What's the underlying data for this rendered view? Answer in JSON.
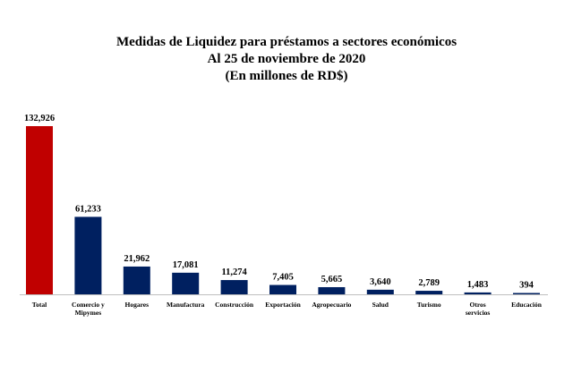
{
  "chart_data": {
    "type": "bar",
    "title": "Medidas de Liquidez para préstamos a sectores económicos",
    "subtitle": "Al 25 de noviembre de 2020",
    "unit_line": "(En millones de RD$)",
    "categories": [
      [
        "Total"
      ],
      [
        "Comercio y",
        "Mipymes"
      ],
      [
        "Hogares"
      ],
      [
        "Manufactura"
      ],
      [
        "Construcción"
      ],
      [
        "Exportación"
      ],
      [
        "Agropecuario"
      ],
      [
        "Salud"
      ],
      [
        "Turismo"
      ],
      [
        "Otros",
        "servicios"
      ],
      [
        "Educación"
      ]
    ],
    "values": [
      132926,
      61233,
      21962,
      17081,
      11274,
      7405,
      5665,
      3640,
      2789,
      1483,
      394
    ],
    "value_labels": [
      "132,926",
      "61,233",
      "21,962",
      "17,081",
      "11,274",
      "7,405",
      "5,665",
      "3,640",
      "2,789",
      "1,483",
      "394"
    ],
    "colors": [
      "#c00000",
      "#002060",
      "#002060",
      "#002060",
      "#002060",
      "#002060",
      "#002060",
      "#002060",
      "#002060",
      "#002060",
      "#002060"
    ],
    "ylim": [
      0,
      132926
    ],
    "grid": false,
    "legend": "none"
  }
}
